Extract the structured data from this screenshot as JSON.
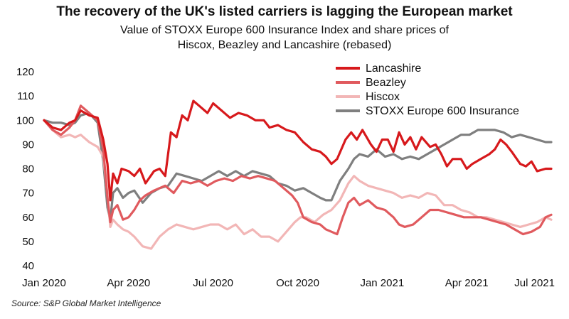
{
  "title": "The recovery of the UK's listed carriers is lagging the European market",
  "subtitle_line1": "Value of STOXX Europe 600 Insurance Index and share prices of",
  "subtitle_line2": "Hiscox, Beazley and Lancashire (rebased)",
  "source": "Source: S&P Global Market Intelligence",
  "colors": {
    "lancashire": "#d7191c",
    "beazley": "#e05a5e",
    "hiscox": "#f2b6b6",
    "stoxx": "#7f7f7f"
  },
  "chart_data": {
    "type": "line",
    "title": "The recovery of the UK's listed carriers is lagging the European market",
    "xlabel": "",
    "ylabel": "",
    "ylim": [
      40,
      120
    ],
    "xlim": [
      0,
      18
    ],
    "yticks": [
      40,
      50,
      60,
      70,
      80,
      90,
      100,
      110,
      120
    ],
    "xticks": [
      {
        "x": 0,
        "label": "Jan 2020"
      },
      {
        "x": 3,
        "label": "Apr 2020"
      },
      {
        "x": 6,
        "label": "Jul 2020"
      },
      {
        "x": 9,
        "label": "Oct 2020"
      },
      {
        "x": 12,
        "label": "Jan 2021"
      },
      {
        "x": 15,
        "label": "Apr 2021"
      },
      {
        "x": 18,
        "label": "Jul 2021"
      }
    ],
    "legend": "top-right",
    "series": [
      {
        "name": "Lancashire",
        "color": "#d7191c",
        "points": [
          [
            0,
            100
          ],
          [
            0.3,
            97
          ],
          [
            0.6,
            96
          ],
          [
            0.9,
            99
          ],
          [
            1.1,
            100
          ],
          [
            1.3,
            104
          ],
          [
            1.6,
            102
          ],
          [
            1.9,
            101
          ],
          [
            2.1,
            92
          ],
          [
            2.25,
            82
          ],
          [
            2.35,
            67
          ],
          [
            2.45,
            78
          ],
          [
            2.6,
            74
          ],
          [
            2.75,
            80
          ],
          [
            3.0,
            79
          ],
          [
            3.2,
            77
          ],
          [
            3.4,
            80
          ],
          [
            3.6,
            74
          ],
          [
            3.9,
            79
          ],
          [
            4.1,
            80
          ],
          [
            4.3,
            77
          ],
          [
            4.5,
            95
          ],
          [
            4.7,
            93
          ],
          [
            4.9,
            102
          ],
          [
            5.1,
            100
          ],
          [
            5.3,
            108
          ],
          [
            5.5,
            106
          ],
          [
            5.8,
            103
          ],
          [
            6.0,
            107
          ],
          [
            6.3,
            104
          ],
          [
            6.6,
            101
          ],
          [
            6.9,
            103
          ],
          [
            7.2,
            102
          ],
          [
            7.5,
            100
          ],
          [
            7.8,
            100
          ],
          [
            8.0,
            97
          ],
          [
            8.3,
            98
          ],
          [
            8.6,
            96
          ],
          [
            8.9,
            95
          ],
          [
            9.2,
            91
          ],
          [
            9.5,
            88
          ],
          [
            9.8,
            87
          ],
          [
            10.0,
            85
          ],
          [
            10.2,
            82
          ],
          [
            10.4,
            84
          ],
          [
            10.7,
            92
          ],
          [
            10.9,
            95
          ],
          [
            11.1,
            92
          ],
          [
            11.3,
            96
          ],
          [
            11.6,
            90
          ],
          [
            11.8,
            87
          ],
          [
            12.0,
            92
          ],
          [
            12.2,
            92
          ],
          [
            12.4,
            87
          ],
          [
            12.6,
            95
          ],
          [
            12.8,
            90
          ],
          [
            13.0,
            93
          ],
          [
            13.2,
            88
          ],
          [
            13.4,
            93
          ],
          [
            13.7,
            89
          ],
          [
            13.9,
            90
          ],
          [
            14.1,
            86
          ],
          [
            14.3,
            81
          ],
          [
            14.5,
            84
          ],
          [
            14.8,
            84
          ],
          [
            15.0,
            80
          ],
          [
            15.2,
            82
          ],
          [
            15.5,
            84
          ],
          [
            15.8,
            86
          ],
          [
            16.0,
            88
          ],
          [
            16.2,
            92
          ],
          [
            16.4,
            90
          ],
          [
            16.6,
            87
          ],
          [
            16.9,
            82
          ],
          [
            17.1,
            81
          ],
          [
            17.3,
            83
          ],
          [
            17.5,
            79
          ],
          [
            17.8,
            80
          ],
          [
            18.0,
            80
          ]
        ]
      },
      {
        "name": "Beazley",
        "color": "#e05a5e",
        "points": [
          [
            0,
            100
          ],
          [
            0.3,
            96
          ],
          [
            0.6,
            94
          ],
          [
            0.9,
            97
          ],
          [
            1.1,
            100
          ],
          [
            1.3,
            106
          ],
          [
            1.6,
            103
          ],
          [
            1.9,
            100
          ],
          [
            2.1,
            88
          ],
          [
            2.25,
            68
          ],
          [
            2.35,
            58
          ],
          [
            2.45,
            63
          ],
          [
            2.6,
            65
          ],
          [
            2.8,
            59
          ],
          [
            3.0,
            60
          ],
          [
            3.2,
            63
          ],
          [
            3.4,
            67
          ],
          [
            3.6,
            69
          ],
          [
            3.9,
            71
          ],
          [
            4.1,
            72
          ],
          [
            4.3,
            73
          ],
          [
            4.6,
            70
          ],
          [
            4.9,
            75
          ],
          [
            5.2,
            74
          ],
          [
            5.5,
            75
          ],
          [
            5.8,
            73
          ],
          [
            6.1,
            75
          ],
          [
            6.4,
            76
          ],
          [
            6.7,
            75
          ],
          [
            7.0,
            77
          ],
          [
            7.3,
            76
          ],
          [
            7.6,
            77
          ],
          [
            7.9,
            76
          ],
          [
            8.2,
            75
          ],
          [
            8.5,
            72
          ],
          [
            8.8,
            69
          ],
          [
            9.0,
            66
          ],
          [
            9.2,
            60
          ],
          [
            9.5,
            58
          ],
          [
            9.8,
            57
          ],
          [
            10.0,
            55
          ],
          [
            10.2,
            54
          ],
          [
            10.4,
            53
          ],
          [
            10.6,
            60
          ],
          [
            10.8,
            66
          ],
          [
            11.0,
            68
          ],
          [
            11.2,
            65
          ],
          [
            11.5,
            67
          ],
          [
            11.8,
            64
          ],
          [
            12.1,
            63
          ],
          [
            12.4,
            60
          ],
          [
            12.6,
            57
          ],
          [
            12.8,
            56
          ],
          [
            13.1,
            57
          ],
          [
            13.4,
            60
          ],
          [
            13.7,
            63
          ],
          [
            14.0,
            63
          ],
          [
            14.3,
            62
          ],
          [
            14.6,
            61
          ],
          [
            14.9,
            60
          ],
          [
            15.2,
            60
          ],
          [
            15.5,
            60
          ],
          [
            15.8,
            59
          ],
          [
            16.1,
            58
          ],
          [
            16.4,
            57
          ],
          [
            16.7,
            55
          ],
          [
            17.0,
            53
          ],
          [
            17.3,
            54
          ],
          [
            17.6,
            56
          ],
          [
            17.8,
            60
          ],
          [
            18.0,
            61
          ]
        ]
      },
      {
        "name": "Hiscox",
        "color": "#f2b6b6",
        "points": [
          [
            0,
            100
          ],
          [
            0.3,
            96
          ],
          [
            0.6,
            93
          ],
          [
            0.9,
            94
          ],
          [
            1.1,
            93
          ],
          [
            1.3,
            94
          ],
          [
            1.6,
            91
          ],
          [
            1.9,
            89
          ],
          [
            2.1,
            85
          ],
          [
            2.25,
            69
          ],
          [
            2.35,
            56
          ],
          [
            2.45,
            59
          ],
          [
            2.6,
            57
          ],
          [
            2.8,
            55
          ],
          [
            3.0,
            54
          ],
          [
            3.2,
            52
          ],
          [
            3.5,
            48
          ],
          [
            3.8,
            47
          ],
          [
            4.1,
            52
          ],
          [
            4.4,
            55
          ],
          [
            4.7,
            57
          ],
          [
            5.0,
            56
          ],
          [
            5.3,
            55
          ],
          [
            5.6,
            56
          ],
          [
            5.9,
            57
          ],
          [
            6.2,
            57
          ],
          [
            6.5,
            55
          ],
          [
            6.8,
            57
          ],
          [
            7.1,
            53
          ],
          [
            7.4,
            55
          ],
          [
            7.7,
            52
          ],
          [
            8.0,
            52
          ],
          [
            8.3,
            50
          ],
          [
            8.6,
            54
          ],
          [
            8.9,
            58
          ],
          [
            9.1,
            60
          ],
          [
            9.3,
            60
          ],
          [
            9.6,
            58
          ],
          [
            9.9,
            61
          ],
          [
            10.2,
            63
          ],
          [
            10.5,
            67
          ],
          [
            10.8,
            74
          ],
          [
            11.0,
            77
          ],
          [
            11.2,
            75
          ],
          [
            11.5,
            73
          ],
          [
            11.8,
            72
          ],
          [
            12.1,
            71
          ],
          [
            12.4,
            70
          ],
          [
            12.7,
            68
          ],
          [
            13.0,
            69
          ],
          [
            13.3,
            68
          ],
          [
            13.6,
            70
          ],
          [
            13.9,
            69
          ],
          [
            14.2,
            65
          ],
          [
            14.5,
            65
          ],
          [
            14.8,
            63
          ],
          [
            15.1,
            62
          ],
          [
            15.4,
            60
          ],
          [
            15.7,
            60
          ],
          [
            16.0,
            59
          ],
          [
            16.3,
            58
          ],
          [
            16.6,
            57
          ],
          [
            16.9,
            56
          ],
          [
            17.2,
            57
          ],
          [
            17.5,
            58
          ],
          [
            17.8,
            60
          ],
          [
            18.0,
            59
          ]
        ]
      },
      {
        "name": "STOXX Europe 600 Insurance",
        "color": "#7f7f7f",
        "points": [
          [
            0,
            100
          ],
          [
            0.3,
            99
          ],
          [
            0.6,
            99
          ],
          [
            0.9,
            98
          ],
          [
            1.1,
            99
          ],
          [
            1.3,
            102
          ],
          [
            1.6,
            103
          ],
          [
            1.9,
            99
          ],
          [
            2.1,
            83
          ],
          [
            2.25,
            64
          ],
          [
            2.35,
            59
          ],
          [
            2.45,
            70
          ],
          [
            2.6,
            72
          ],
          [
            2.8,
            68
          ],
          [
            3.0,
            70
          ],
          [
            3.2,
            71
          ],
          [
            3.5,
            66
          ],
          [
            3.8,
            70
          ],
          [
            4.1,
            72
          ],
          [
            4.4,
            73
          ],
          [
            4.7,
            78
          ],
          [
            5.0,
            77
          ],
          [
            5.3,
            76
          ],
          [
            5.6,
            75
          ],
          [
            5.9,
            77
          ],
          [
            6.2,
            79
          ],
          [
            6.5,
            77
          ],
          [
            6.8,
            79
          ],
          [
            7.1,
            77
          ],
          [
            7.4,
            79
          ],
          [
            7.7,
            78
          ],
          [
            8.0,
            77
          ],
          [
            8.3,
            74
          ],
          [
            8.6,
            73
          ],
          [
            8.9,
            71
          ],
          [
            9.2,
            72
          ],
          [
            9.5,
            70
          ],
          [
            9.8,
            68
          ],
          [
            10.0,
            67
          ],
          [
            10.2,
            67
          ],
          [
            10.5,
            75
          ],
          [
            10.8,
            80
          ],
          [
            11.0,
            84
          ],
          [
            11.2,
            86
          ],
          [
            11.5,
            85
          ],
          [
            11.8,
            88
          ],
          [
            12.1,
            85
          ],
          [
            12.4,
            86
          ],
          [
            12.7,
            84
          ],
          [
            13.0,
            85
          ],
          [
            13.3,
            84
          ],
          [
            13.6,
            86
          ],
          [
            13.9,
            88
          ],
          [
            14.2,
            90
          ],
          [
            14.5,
            92
          ],
          [
            14.8,
            94
          ],
          [
            15.1,
            94
          ],
          [
            15.4,
            96
          ],
          [
            15.7,
            96
          ],
          [
            16.0,
            96
          ],
          [
            16.3,
            95
          ],
          [
            16.6,
            93
          ],
          [
            16.9,
            94
          ],
          [
            17.2,
            93
          ],
          [
            17.5,
            92
          ],
          [
            17.8,
            91
          ],
          [
            18.0,
            91
          ]
        ]
      }
    ]
  }
}
